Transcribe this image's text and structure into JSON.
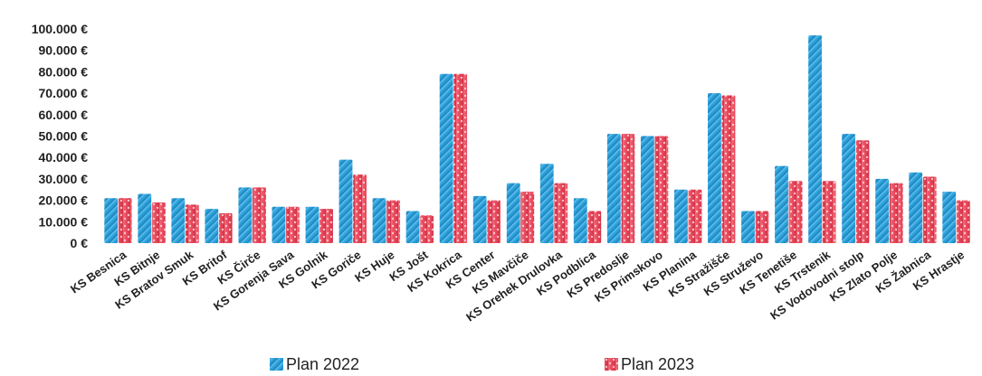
{
  "chart_data": {
    "type": "bar",
    "categories": [
      "KS Besnica",
      "KS Bitnje",
      "KS Bratov Smuk",
      "KS Britof",
      "KS Čirče",
      "KS Gorenja Sava",
      "KS Golnik",
      "KS Goriče",
      "KS Huje",
      "KS Jošt",
      "KS Kokrica",
      "KS Center",
      "KS Mavčiče",
      "KS Orehek Drulovka",
      "KS Podblica",
      "KS Predoslje",
      "KS Primskovo",
      "KS Planina",
      "KS Stražišče",
      "KS Struževo",
      "KS Tenetiše",
      "KS Trstenik",
      "KS Vodovodni stolp",
      "KS Zlato Polje",
      "KS Žabnica",
      "KS Hrastje"
    ],
    "series": [
      {
        "name": "Plan 2022",
        "color": "#2a9fd8",
        "values": [
          21000,
          23000,
          21000,
          16000,
          26000,
          17000,
          17000,
          39000,
          21000,
          15000,
          79000,
          22000,
          28000,
          37000,
          21000,
          51000,
          50000,
          25000,
          70000,
          15000,
          36000,
          97000,
          51000,
          30000,
          33000,
          24000
        ]
      },
      {
        "name": "Plan 2023",
        "color": "#e8485b",
        "values": [
          21000,
          19000,
          18000,
          14000,
          26000,
          17000,
          16000,
          32000,
          20000,
          13000,
          79000,
          20000,
          24000,
          28000,
          15000,
          51000,
          50000,
          25000,
          69000,
          15000,
          29000,
          29000,
          48000,
          28000,
          31000,
          20000
        ]
      }
    ],
    "y_ticks": [
      "0 €",
      "10.000 €",
      "20.000 €",
      "30.000 €",
      "40.000 €",
      "50.000 €",
      "60.000 €",
      "70.000 €",
      "80.000 €",
      "90.000 €",
      "100.000 €"
    ],
    "ylim": [
      0,
      100000
    ],
    "grid": false,
    "legend_position": "bottom",
    "title": "",
    "xlabel": "",
    "ylabel": ""
  }
}
